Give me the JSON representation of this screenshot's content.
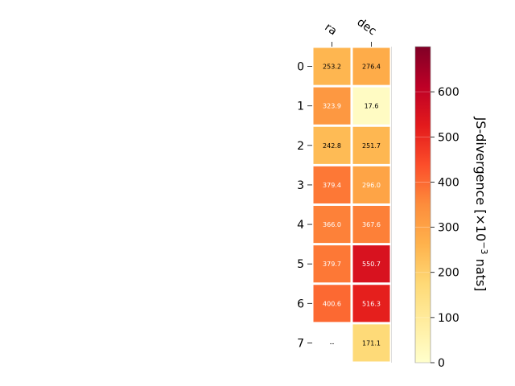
{
  "chart_data": {
    "type": "heatmap",
    "columns": [
      "ra",
      "dec"
    ],
    "rows": [
      "0",
      "1",
      "2",
      "3",
      "4",
      "5",
      "6",
      "7"
    ],
    "values": [
      [
        253.2,
        276.4
      ],
      [
        323.9,
        17.6
      ],
      [
        242.8,
        251.7
      ],
      [
        379.4,
        296.0
      ],
      [
        366.0,
        367.6
      ],
      [
        379.7,
        550.7
      ],
      [
        400.6,
        516.3
      ],
      [
        null,
        171.1
      ]
    ],
    "cell_labels": [
      [
        "253.2",
        "276.4"
      ],
      [
        "323.9",
        "17.6"
      ],
      [
        "242.8",
        "251.7"
      ],
      [
        "379.4",
        "296.0"
      ],
      [
        "366.0",
        "367.6"
      ],
      [
        "379.7",
        "550.7"
      ],
      [
        "400.6",
        "516.3"
      ],
      [
        "--",
        "171.1"
      ]
    ],
    "colorbar": {
      "label_prefix": "JS-divergence [×10",
      "label_exponent": "−3",
      "label_suffix": " nats]",
      "range": [
        0,
        700
      ],
      "ticks": [
        "0",
        "100",
        "200",
        "300",
        "400",
        "500",
        "600"
      ],
      "colormap": "YlOrRd"
    }
  }
}
